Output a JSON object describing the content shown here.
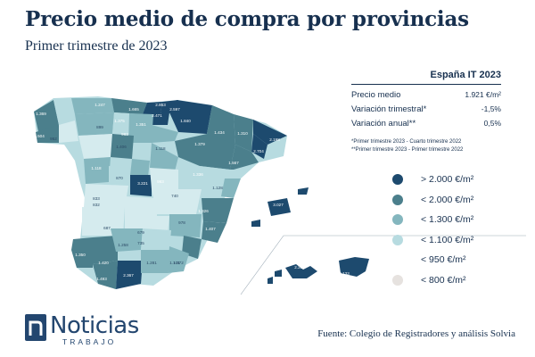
{
  "header": {
    "title": "Precio medio de compra por provincias",
    "subtitle": "Primer trimestre de 2023"
  },
  "panel": {
    "title": "España IT 2023",
    "rows": [
      {
        "label": "Precio medio",
        "value": "1.921 €/m²"
      },
      {
        "label": "Variación trimestral*",
        "value": "-1,5%"
      },
      {
        "label": "Variación anual**",
        "value": "0,5%"
      }
    ],
    "notes": [
      "*Primer trimestre 2023 - Cuarto trimestre 2022",
      "**Primer trimestre 2023 - Primer trimestre 2022"
    ]
  },
  "legend": [
    {
      "label": "> 2.000 €/m²",
      "color": "#1d4a6e"
    },
    {
      "label": "< 2.000 €/m²",
      "color": "#4b7f8c"
    },
    {
      "label": "< 1.300 €/m²",
      "color": "#84b6be"
    },
    {
      "label": "< 1.100 €/m²",
      "color": "#b7dbe0"
    },
    {
      "label": "< 950 €/m²",
      "color": "#d5ebee"
    },
    {
      "label": "< 800 €/m²",
      "color": "#e6e2df"
    }
  ],
  "map_labels": [
    "1.369",
    "1.247",
    "1.665",
    "2.863",
    "2.597",
    "2.471",
    "1.840",
    "1.504",
    "1.375",
    "1.351",
    "952",
    "899",
    "963",
    "1.434",
    "1.310",
    "1.379",
    "1.567",
    "2.198",
    "2.704",
    "1.118",
    "1.406",
    "1.118",
    "870",
    "963",
    "1.336",
    "3.221",
    "833",
    "740",
    "1.128",
    "832",
    "1.326",
    "1.407",
    "3.027",
    "978",
    "687",
    "679",
    "1.258",
    "735",
    "1.101",
    "1.350",
    "1.420",
    "1.493",
    "1.281",
    "1.372",
    "2.367",
    "2.206",
    "2.133"
  ],
  "source": "Fuente: Colegio de Registradores y análisis Solvia",
  "logo": {
    "main": "Noticias",
    "sub": "TRABAJO"
  }
}
